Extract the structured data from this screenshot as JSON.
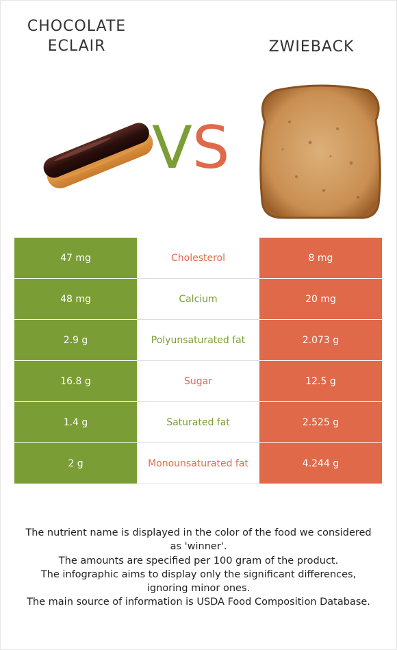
{
  "left_food": {
    "name": "CHOCOLATE\nECLAIR",
    "color": "#7a9e35"
  },
  "right_food": {
    "name": "ZWIEBACK",
    "color": "#e0694a"
  },
  "vs": {
    "v": "V",
    "s": "S"
  },
  "rows": [
    {
      "left": "47 mg",
      "nutrient": "Cholesterol",
      "right": "8 mg",
      "winner_color": "#e0694a"
    },
    {
      "left": "48 mg",
      "nutrient": "Calcium",
      "right": "20 mg",
      "winner_color": "#7a9e35"
    },
    {
      "left": "2.9 g",
      "nutrient": "Polyunsaturated fat",
      "right": "2.073 g",
      "winner_color": "#7a9e35"
    },
    {
      "left": "16.8 g",
      "nutrient": "Sugar",
      "right": "12.5 g",
      "winner_color": "#e0694a"
    },
    {
      "left": "1.4 g",
      "nutrient": "Saturated fat",
      "right": "2.525 g",
      "winner_color": "#7a9e35"
    },
    {
      "left": "2 g",
      "nutrient": "Monounsaturated fat",
      "right": "4.244 g",
      "winner_color": "#e0694a"
    }
  ],
  "footnote": [
    "The nutrient name is displayed in the color of the food we considered as 'winner'.",
    "The amounts are specified per 100 gram of the product.",
    "The infographic aims to display only the significant differences, ignoring minor ones.",
    "The main source of information is USDA Food Composition Database."
  ]
}
